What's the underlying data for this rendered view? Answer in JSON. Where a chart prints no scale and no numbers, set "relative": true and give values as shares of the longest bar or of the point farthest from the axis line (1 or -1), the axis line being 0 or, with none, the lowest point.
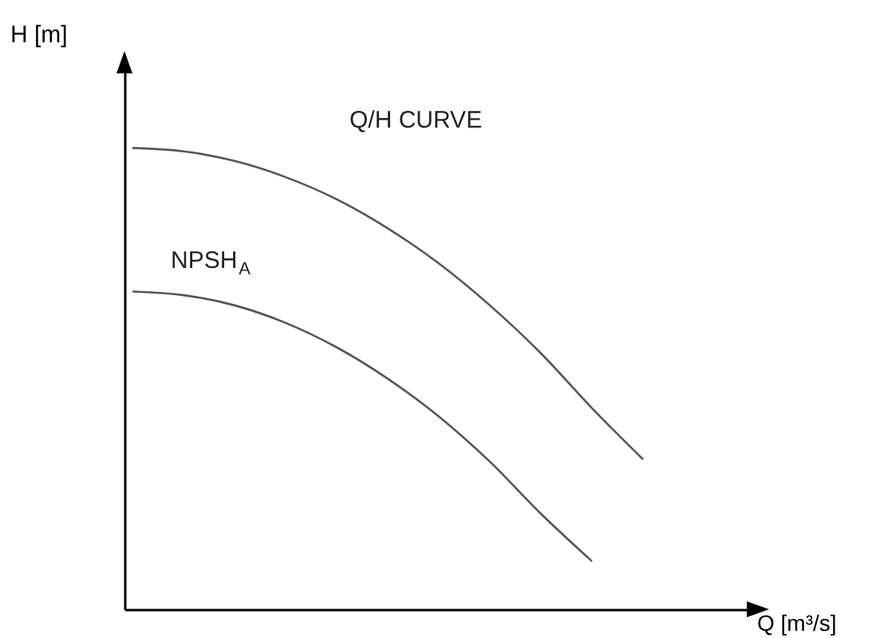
{
  "chart_data": {
    "type": "line",
    "relative": true,
    "xlabel": "Q [m³/s]",
    "ylabel": "H [m]",
    "categories": [
      null,
      null,
      null,
      null,
      null,
      null,
      null,
      null,
      null,
      null,
      null
    ],
    "series": [
      {
        "name": "Q/H CURVE",
        "color": "#555555",
        "values": [
          1.0,
          0.993,
          0.972,
          0.937,
          0.889,
          0.826,
          0.75,
          0.659,
          0.555,
          0.436,
          0.325
        ]
      },
      {
        "name": "NPSH$_{A}$",
        "color": "#555555",
        "values": [
          0.689,
          0.681,
          0.659,
          0.621,
          0.568,
          0.5,
          0.418,
          0.32,
          0.207,
          0.104,
          null
        ]
      }
    ],
    "grid": false,
    "legend": false
  }
}
